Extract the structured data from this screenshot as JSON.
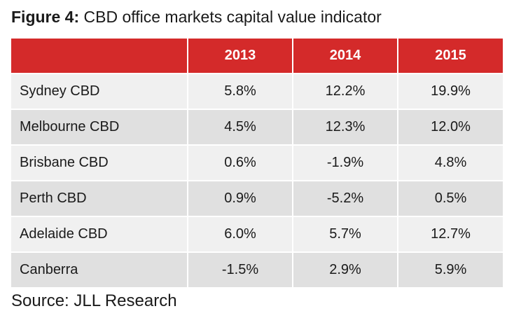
{
  "caption": {
    "label": "Figure 4:",
    "text": " CBD office markets capital value indicator"
  },
  "table": {
    "columns": [
      "",
      "2013",
      "2014",
      "2015"
    ],
    "rows": [
      {
        "market": "Sydney CBD",
        "values": [
          "5.8%",
          "12.2%",
          "19.9%"
        ]
      },
      {
        "market": "Melbourne CBD",
        "values": [
          "4.5%",
          "12.3%",
          "12.0%"
        ]
      },
      {
        "market": "Brisbane CBD",
        "values": [
          "0.6%",
          "-1.9%",
          "4.8%"
        ]
      },
      {
        "market": "Perth CBD",
        "values": [
          "0.9%",
          "-5.2%",
          "0.5%"
        ]
      },
      {
        "market": "Adelaide CBD",
        "values": [
          "6.0%",
          "5.7%",
          "12.7%"
        ]
      },
      {
        "market": "Canberra",
        "values": [
          "-1.5%",
          "2.9%",
          "5.9%"
        ]
      }
    ]
  },
  "source": "Source: JLL Research",
  "colors": {
    "header_bg": "#d42a2a",
    "header_text": "#ffffff",
    "row_light": "#f0f0f0",
    "row_dark": "#e0e0e0"
  }
}
